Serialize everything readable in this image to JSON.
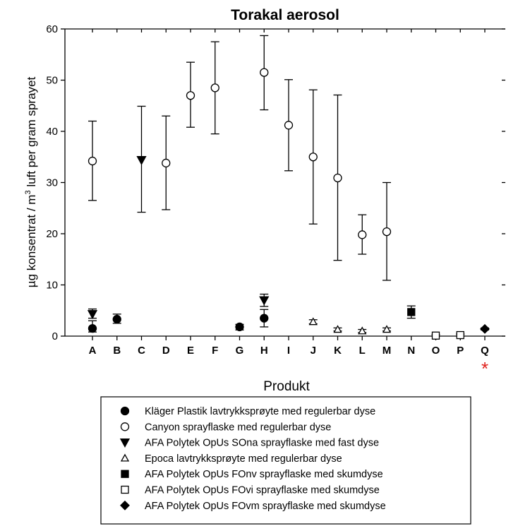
{
  "chart_data": {
    "type": "scatter",
    "title": "Torakal aerosol",
    "xlabel": "Produkt",
    "ylabel_parts": [
      "µg konsentrat / m",
      "3",
      " luft per gram sprayet"
    ],
    "ylim": [
      0,
      60
    ],
    "yticks": [
      0,
      10,
      20,
      30,
      40,
      50,
      60
    ],
    "categories": [
      "A",
      "B",
      "C",
      "D",
      "E",
      "F",
      "G",
      "H",
      "I",
      "J",
      "K",
      "L",
      "M",
      "N",
      "O",
      "P",
      "Q"
    ],
    "annotation": {
      "category": "Q",
      "text": "*",
      "color": "#e0201b"
    },
    "legend_position": "bottom",
    "series": [
      {
        "name": "Kläger Plastik lavtrykksprøyte med regulerbar dyse",
        "marker": "circle-filled",
        "points": [
          {
            "x": "A",
            "y": 1.5,
            "lo": 0.8,
            "hi": 3.0
          },
          {
            "x": "B",
            "y": 3.3,
            "lo": 2.5,
            "hi": 4.3
          },
          {
            "x": "G",
            "y": 1.8,
            "lo": 1.2,
            "hi": 2.3
          },
          {
            "x": "H",
            "y": 3.5,
            "lo": 1.8,
            "hi": 5.2
          }
        ]
      },
      {
        "name": "Canyon sprayflaske med regulerbar dyse",
        "marker": "circle-open",
        "points": [
          {
            "x": "A",
            "y": 34.2,
            "lo": 26.5,
            "hi": 42.0
          },
          {
            "x": "D",
            "y": 33.8,
            "lo": 24.7,
            "hi": 43.0
          },
          {
            "x": "E",
            "y": 47.0,
            "lo": 40.8,
            "hi": 53.5
          },
          {
            "x": "F",
            "y": 48.5,
            "lo": 39.5,
            "hi": 57.5
          },
          {
            "x": "H",
            "y": 51.5,
            "lo": 44.2,
            "hi": 58.7
          },
          {
            "x": "I",
            "y": 41.2,
            "lo": 32.3,
            "hi": 50.1
          },
          {
            "x": "J",
            "y": 35.0,
            "lo": 21.9,
            "hi": 48.1
          },
          {
            "x": "K",
            "y": 30.9,
            "lo": 14.8,
            "hi": 47.1
          },
          {
            "x": "L",
            "y": 19.8,
            "lo": 16.0,
            "hi": 23.7
          },
          {
            "x": "M",
            "y": 20.4,
            "lo": 10.9,
            "hi": 30.0
          }
        ]
      },
      {
        "name": "AFA Polytek OpUs SOna sprayflaske med fast dyse",
        "marker": "triangle-down-filled",
        "points": [
          {
            "x": "A",
            "y": 4.3,
            "lo": 3.5,
            "hi": 5.3
          },
          {
            "x": "C",
            "y": 34.4,
            "lo": 24.2,
            "hi": 44.9
          },
          {
            "x": "H",
            "y": 7.0,
            "lo": 5.8,
            "hi": 8.2
          }
        ]
      },
      {
        "name": "Epoca lavtrykksprøyte med regulerbar dyse",
        "marker": "triangle-up-open",
        "points": [
          {
            "x": "J",
            "y": 2.8,
            "lo": 2.4,
            "hi": 3.2
          },
          {
            "x": "K",
            "y": 1.3,
            "lo": 1.0,
            "hi": 1.6
          },
          {
            "x": "L",
            "y": 1.0,
            "lo": 0.7,
            "hi": 1.3
          },
          {
            "x": "M",
            "y": 1.3,
            "lo": 1.0,
            "hi": 1.6
          }
        ]
      },
      {
        "name": "AFA Polytek OpUs FOnv sprayflaske med skumdyse",
        "marker": "square-filled",
        "points": [
          {
            "x": "N",
            "y": 4.7,
            "lo": 3.5,
            "hi": 5.9
          }
        ]
      },
      {
        "name": "AFA Polytek OpUs FOvi sprayflaske med skumdyse",
        "marker": "square-open",
        "points": [
          {
            "x": "O",
            "y": 0.1,
            "lo": 0.0,
            "hi": 0.3
          },
          {
            "x": "P",
            "y": 0.2,
            "lo": 0.0,
            "hi": 0.4
          }
        ]
      },
      {
        "name": "AFA Polytek OpUs FOvm sprayflaske med skumdyse",
        "marker": "diamond-filled",
        "points": [
          {
            "x": "Q",
            "y": 1.4,
            "lo": 1.2,
            "hi": 1.6
          }
        ]
      }
    ]
  }
}
